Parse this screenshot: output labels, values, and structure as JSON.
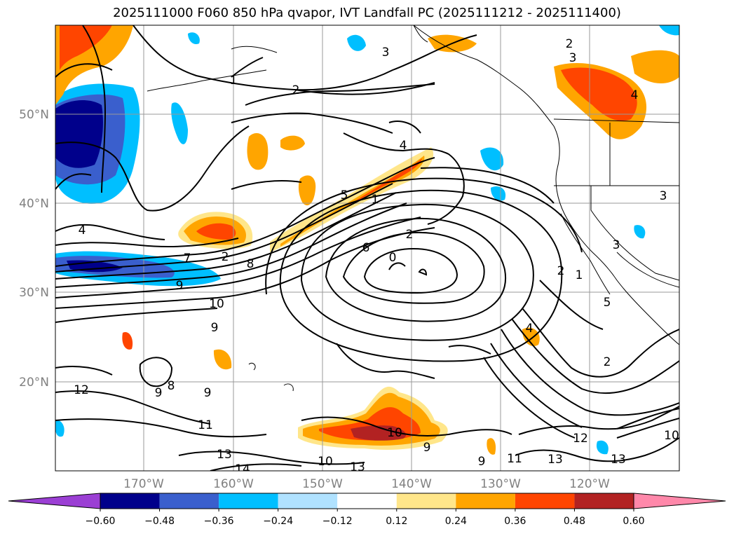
{
  "title": "2025111000 F060 850 hPa qvapor, IVT Landfall PC (2025111212 - 2025111400)",
  "axes": {
    "lat_labels": [
      "50°N",
      "40°N",
      "30°N",
      "20°N"
    ],
    "lon_labels": [
      "170°W",
      "160°W",
      "150°W",
      "140°W",
      "130°W",
      "120°W"
    ]
  },
  "colorbar": {
    "colors": [
      "#9b3fd4",
      "#00008b",
      "#3a5fcd",
      "#00bfff",
      "#b0e2ff",
      "#ffffff",
      "#ffe68a",
      "#ffa500",
      "#ff4500",
      "#b22222",
      "#ff88aa"
    ],
    "tick_labels": [
      "−0.60",
      "−0.48",
      "−0.36",
      "−0.24",
      "−0.12",
      "0.12",
      "0.24",
      "0.36",
      "0.48",
      "0.60"
    ]
  },
  "contour_labels": [
    "2",
    "3",
    "1",
    "2",
    "3",
    "4",
    "5",
    "1",
    "4",
    "4",
    "7",
    "2",
    "6",
    "0",
    "2",
    "9",
    "10",
    "8",
    "2",
    "1",
    "3",
    "5",
    "4",
    "9",
    "9",
    "9",
    "8",
    "12",
    "11",
    "13",
    "14",
    "10",
    "13",
    "10",
    "9",
    "9",
    "11",
    "13",
    "12",
    "13",
    "10",
    "2",
    "3"
  ]
}
